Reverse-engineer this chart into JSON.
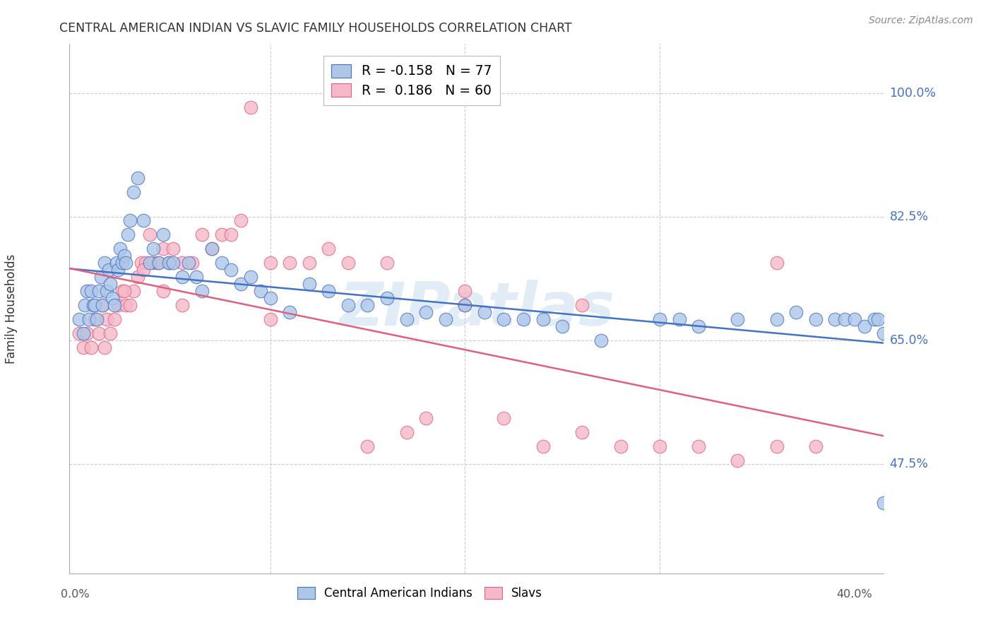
{
  "title": "CENTRAL AMERICAN INDIAN VS SLAVIC FAMILY HOUSEHOLDS CORRELATION CHART",
  "source": "Source: ZipAtlas.com",
  "ylabel": "Family Households",
  "ytick_values": [
    1.0,
    0.825,
    0.65,
    0.475
  ],
  "ytick_labels": [
    "100.0%",
    "82.5%",
    "65.0%",
    "47.5%"
  ],
  "ymin": 0.32,
  "ymax": 1.07,
  "xmin": -0.003,
  "xmax": 0.415,
  "blue_color": "#aec6e8",
  "pink_color": "#f4b8c8",
  "blue_line_color": "#4472c4",
  "pink_line_color": "#e06080",
  "grid_color": "#cccccc",
  "watermark": "ZIPatlas",
  "watermark_color": "#b8d0ea",
  "legend_r_blue": "-0.158",
  "legend_n_blue": "77",
  "legend_r_pink": "0.186",
  "legend_n_pink": "60",
  "blue_x": [
    0.002,
    0.004,
    0.005,
    0.006,
    0.007,
    0.008,
    0.009,
    0.01,
    0.011,
    0.012,
    0.013,
    0.014,
    0.015,
    0.016,
    0.017,
    0.018,
    0.019,
    0.02,
    0.021,
    0.022,
    0.023,
    0.024,
    0.025,
    0.026,
    0.027,
    0.028,
    0.03,
    0.032,
    0.035,
    0.038,
    0.04,
    0.043,
    0.045,
    0.048,
    0.05,
    0.055,
    0.058,
    0.062,
    0.065,
    0.07,
    0.075,
    0.08,
    0.085,
    0.09,
    0.095,
    0.1,
    0.11,
    0.12,
    0.13,
    0.14,
    0.15,
    0.16,
    0.17,
    0.18,
    0.19,
    0.2,
    0.21,
    0.22,
    0.23,
    0.24,
    0.25,
    0.27,
    0.3,
    0.31,
    0.32,
    0.34,
    0.36,
    0.37,
    0.38,
    0.39,
    0.395,
    0.4,
    0.405,
    0.41,
    0.412,
    0.415,
    0.415
  ],
  "blue_y": [
    0.68,
    0.66,
    0.7,
    0.72,
    0.68,
    0.72,
    0.7,
    0.7,
    0.68,
    0.72,
    0.74,
    0.7,
    0.76,
    0.72,
    0.75,
    0.73,
    0.71,
    0.7,
    0.76,
    0.75,
    0.78,
    0.76,
    0.77,
    0.76,
    0.8,
    0.82,
    0.86,
    0.88,
    0.82,
    0.76,
    0.78,
    0.76,
    0.8,
    0.76,
    0.76,
    0.74,
    0.76,
    0.74,
    0.72,
    0.78,
    0.76,
    0.75,
    0.73,
    0.74,
    0.72,
    0.71,
    0.69,
    0.73,
    0.72,
    0.7,
    0.7,
    0.71,
    0.68,
    0.69,
    0.68,
    0.7,
    0.69,
    0.68,
    0.68,
    0.68,
    0.67,
    0.65,
    0.68,
    0.68,
    0.67,
    0.68,
    0.68,
    0.69,
    0.68,
    0.68,
    0.68,
    0.68,
    0.67,
    0.68,
    0.68,
    0.66,
    0.42
  ],
  "pink_x": [
    0.002,
    0.004,
    0.006,
    0.008,
    0.01,
    0.012,
    0.014,
    0.016,
    0.018,
    0.02,
    0.022,
    0.024,
    0.026,
    0.028,
    0.03,
    0.032,
    0.034,
    0.036,
    0.038,
    0.04,
    0.042,
    0.045,
    0.048,
    0.05,
    0.055,
    0.06,
    0.065,
    0.07,
    0.075,
    0.08,
    0.085,
    0.09,
    0.1,
    0.11,
    0.12,
    0.13,
    0.14,
    0.16,
    0.17,
    0.18,
    0.2,
    0.22,
    0.24,
    0.26,
    0.28,
    0.3,
    0.32,
    0.34,
    0.36,
    0.38,
    0.015,
    0.025,
    0.035,
    0.045,
    0.055,
    0.1,
    0.15,
    0.2,
    0.26,
    0.36
  ],
  "pink_y": [
    0.66,
    0.64,
    0.66,
    0.64,
    0.68,
    0.66,
    0.7,
    0.68,
    0.66,
    0.68,
    0.7,
    0.72,
    0.7,
    0.7,
    0.72,
    0.74,
    0.76,
    0.76,
    0.8,
    0.76,
    0.76,
    0.78,
    0.76,
    0.78,
    0.76,
    0.76,
    0.8,
    0.78,
    0.8,
    0.8,
    0.82,
    0.98,
    0.76,
    0.76,
    0.76,
    0.78,
    0.76,
    0.76,
    0.52,
    0.54,
    0.72,
    0.54,
    0.5,
    0.52,
    0.5,
    0.5,
    0.5,
    0.48,
    0.5,
    0.5,
    0.64,
    0.72,
    0.75,
    0.72,
    0.7,
    0.68,
    0.5,
    0.7,
    0.7,
    0.76
  ]
}
